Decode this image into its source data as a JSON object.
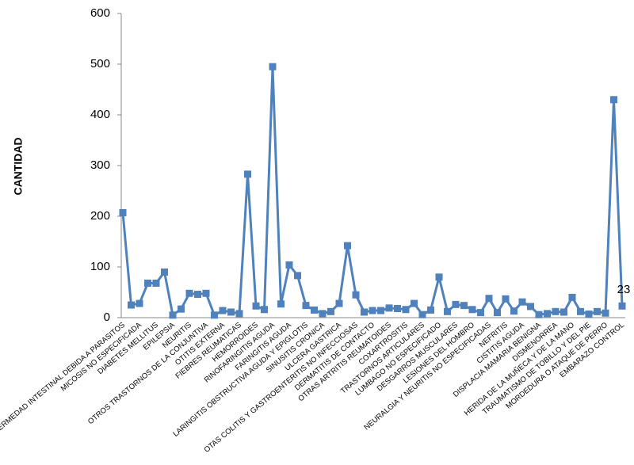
{
  "chart_data": {
    "type": "line",
    "y_label": "CANTIDAD",
    "categories": [
      "ENFERMEDAD INTESTINAL DEBIDA A PARASITOS",
      null,
      "MICOSIS NO ESPECIFICADA",
      null,
      "DIABETES MELLITUS",
      null,
      "EPILEPSIA",
      null,
      "NEURITIS",
      null,
      "OTROS TRASTORNOS DE LA CONJUNTIVA",
      null,
      "OTITIS EXTERNA",
      null,
      "FIEBRES REUMATICAS",
      null,
      "HEMORROIDES",
      null,
      "RINOFARINGITIS AGUDA",
      null,
      "FARINGITIS AGUDA",
      null,
      "LARINGITIS  OBSTRUCTIVA AGUDA Y EPIGLOTIS",
      null,
      "SINUSITIS CRONICA",
      null,
      "ULCERA GASTRICA",
      null,
      "OTAS COLITIS Y GASTROENTERITIS NO INFECCIOSAS",
      null,
      "DERMATITIS DE CONTACTO",
      null,
      "OTRAS ARTRITIS REUMATOIDES",
      null,
      "COXARTROSITIS",
      null,
      "TRASTORNOS ARTICULARES",
      null,
      "LUMBAGO NO ESPECIFICADO",
      null,
      "DESGARROS MUSCULARES",
      null,
      "LESIONES DEL HOMBRO",
      null,
      "NEURALGIA Y NEURITIS NO ESPECIFICADAS",
      null,
      "NEFRITIS",
      null,
      "CISTITIS AGUDA",
      null,
      "DISPLACIA MAMARIA BENIGNA",
      null,
      "DISMENORREA",
      null,
      "HERIDA DE LA MUÑECA Y DE LA MANO",
      null,
      "TRAUMATISMO DE TOBILLO Y  DEL PIE",
      null,
      "MORDEDURA O ATAQUE DE PERRO",
      null,
      "EMBARAZO CONTROL"
    ],
    "values": [
      207,
      25,
      28,
      68,
      68,
      90,
      5,
      17,
      48,
      46,
      48,
      5,
      14,
      11,
      8,
      283,
      23,
      16,
      495,
      27,
      104,
      83,
      24,
      15,
      8,
      12,
      28,
      142,
      45,
      11,
      14,
      14,
      19,
      18,
      16,
      28,
      6,
      15,
      80,
      12,
      26,
      24,
      16,
      10,
      38,
      10,
      37,
      13,
      31,
      22,
      6,
      8,
      12,
      11,
      40,
      12,
      7,
      12,
      9,
      430,
      23
    ],
    "value_labels": [
      null,
      null,
      null,
      null,
      null,
      null,
      null,
      null,
      null,
      null,
      null,
      null,
      null,
      null,
      null,
      null,
      null,
      null,
      null,
      null,
      null,
      null,
      null,
      null,
      null,
      null,
      null,
      null,
      null,
      null,
      null,
      null,
      null,
      null,
      null,
      null,
      null,
      null,
      null,
      null,
      null,
      null,
      null,
      null,
      null,
      null,
      null,
      null,
      null,
      null,
      null,
      null,
      null,
      null,
      null,
      null,
      null,
      null,
      null,
      null,
      "23"
    ],
    "color": "#4f81bd",
    "ylim": [
      0,
      600
    ],
    "yticks": [
      0,
      100,
      200,
      300,
      400,
      500,
      600
    ],
    "grid": false
  }
}
